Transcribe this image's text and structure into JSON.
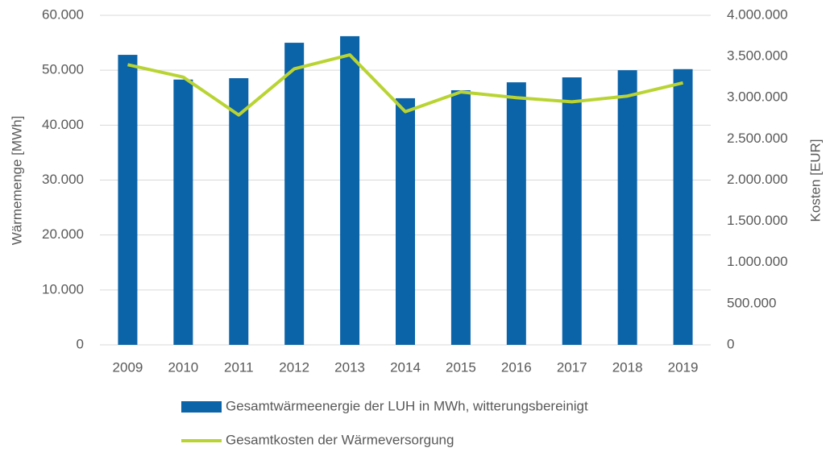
{
  "chart_data": {
    "type": "bar",
    "y_label": "Wärmemenge [MWh]",
    "y2_label": "Kosten [EUR]",
    "categories": [
      "2009",
      "2010",
      "2011",
      "2012",
      "2013",
      "2014",
      "2015",
      "2016",
      "2017",
      "2018",
      "2019"
    ],
    "series": [
      {
        "name": "Gesamtwärmeenergie der LUH in MWh, witterungsbereinigt",
        "type": "bar",
        "color": "#0b63a8",
        "values": [
          52800,
          48300,
          48550,
          55000,
          56200,
          44900,
          46350,
          47800,
          48700,
          50000,
          50200
        ]
      },
      {
        "name": "Gesamtkosten der Wärmeversorgung",
        "type": "line",
        "axis": "y2",
        "color": "#b9d432",
        "values": [
          3400000,
          3250000,
          2790000,
          3350000,
          3520000,
          2830000,
          3070000,
          3000000,
          2950000,
          3020000,
          3180000
        ]
      }
    ],
    "ylim": [
      0,
      60000
    ],
    "yticks": [
      0,
      {
        "value": 10000,
        "label": "10.000"
      },
      {
        "value": 20000,
        "label": "20.000"
      },
      {
        "value": 30000,
        "label": "30.000"
      },
      {
        "value": 40000,
        "label": "40.000"
      },
      {
        "value": 50000,
        "label": "50.000"
      },
      {
        "value": 60000,
        "label": "60.000"
      }
    ],
    "y2lim": [
      0,
      4000000
    ],
    "y2ticks": [
      0,
      {
        "value": 500000,
        "label": "500.000"
      },
      {
        "value": 1000000,
        "label": "1.000.000"
      },
      {
        "value": 1500000,
        "label": "1.500.000"
      },
      {
        "value": 2000000,
        "label": "2.000.000"
      },
      {
        "value": 2500000,
        "label": "2.500.000"
      },
      {
        "value": 3000000,
        "label": "3.000.000"
      },
      {
        "value": 3500000,
        "label": "3.500.000"
      },
      {
        "value": 4000000,
        "label": "4.000.000"
      }
    ],
    "grid": true,
    "legend": "bottom"
  }
}
